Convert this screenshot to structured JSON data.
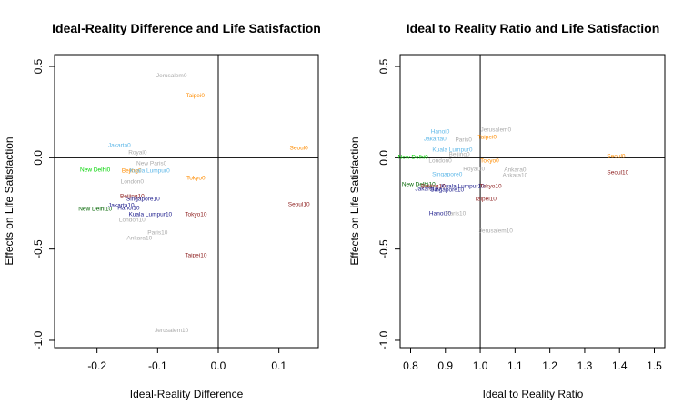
{
  "chart_data": [
    {
      "type": "scatter",
      "title": "Ideal-Reality Difference and Life Satisfaction",
      "xlabel": "Ideal-Reality Difference",
      "ylabel": "Effects on Life Satisfaction",
      "xlim": [
        -0.27,
        0.165
      ],
      "ylim": [
        -1.04,
        0.565
      ],
      "xticks": [
        -0.2,
        -0.1,
        0.0,
        0.1
      ],
      "xtick_labels": [
        "-0.2",
        "-0.1",
        "0.0",
        "0.1"
      ],
      "yticks": [
        0.5,
        0.0,
        -0.5,
        -1.0
      ],
      "ytick_labels": [
        "0.5",
        "0.0",
        "-0.5",
        "-1.0"
      ],
      "reference_lines": {
        "x": 0.0,
        "y": 0.0
      },
      "points": [
        {
          "label": "Jerusalem0",
          "x": -0.077,
          "y": 0.45,
          "color": "#aaaaaa"
        },
        {
          "label": "Taipei0",
          "x": -0.038,
          "y": 0.34,
          "color": "#ff8c00"
        },
        {
          "label": "Jakarta0",
          "x": -0.163,
          "y": 0.07,
          "color": "#5fb8e8"
        },
        {
          "label": "Seoul0",
          "x": 0.133,
          "y": 0.055,
          "color": "#ff8c00"
        },
        {
          "label": "Royal0",
          "x": -0.133,
          "y": 0.03,
          "color": "#aaaaaa"
        },
        {
          "label": "New Paris0",
          "x": -0.11,
          "y": -0.03,
          "color": "#aaaaaa"
        },
        {
          "label": "New Delhi0",
          "x": -0.203,
          "y": -0.065,
          "color": "#00d400"
        },
        {
          "label": "Bejing0",
          "x": -0.143,
          "y": -0.07,
          "color": "#ff8c00"
        },
        {
          "label": "Kuala Lumpur0",
          "x": -0.113,
          "y": -0.07,
          "color": "#5fb8e8"
        },
        {
          "label": "Tokyo0",
          "x": -0.037,
          "y": -0.11,
          "color": "#ff8c00"
        },
        {
          "label": "London0",
          "x": -0.142,
          "y": -0.13,
          "color": "#aaaaaa"
        },
        {
          "label": "Beijing10",
          "x": -0.142,
          "y": -0.21,
          "color": "#8b1a1a"
        },
        {
          "label": "Singapore10",
          "x": -0.124,
          "y": -0.225,
          "color": "#1a1a8b"
        },
        {
          "label": "Seoul10",
          "x": 0.133,
          "y": -0.255,
          "color": "#8b1a1a"
        },
        {
          "label": "Jakarta10",
          "x": -0.16,
          "y": -0.26,
          "color": "#1a1a8b"
        },
        {
          "label": "Hanoi10",
          "x": -0.148,
          "y": -0.275,
          "color": "#1a1a8b"
        },
        {
          "label": "New Delhi10",
          "x": -0.203,
          "y": -0.28,
          "color": "#006400"
        },
        {
          "label": "Kuala Lumpur10",
          "x": -0.112,
          "y": -0.31,
          "color": "#1a1a8b"
        },
        {
          "label": "Tokyo10",
          "x": -0.037,
          "y": -0.31,
          "color": "#8b1a1a"
        },
        {
          "label": "London10",
          "x": -0.142,
          "y": -0.34,
          "color": "#aaaaaa"
        },
        {
          "label": "Paris10",
          "x": -0.1,
          "y": -0.41,
          "color": "#aaaaaa"
        },
        {
          "label": "Ankara10",
          "x": -0.13,
          "y": -0.44,
          "color": "#aaaaaa"
        },
        {
          "label": "Taipei10",
          "x": -0.037,
          "y": -0.535,
          "color": "#8b1a1a"
        },
        {
          "label": "Jerusalem10",
          "x": -0.077,
          "y": -0.945,
          "color": "#aaaaaa"
        }
      ]
    },
    {
      "type": "scatter",
      "title": "Ideal to Reality Ratio and Life Satisfaction",
      "xlabel": "Ideal to Reality Ratio",
      "ylabel": "Effects on Life Satisfaction",
      "xlim": [
        0.77,
        1.53
      ],
      "ylim": [
        -1.04,
        0.565
      ],
      "xticks": [
        0.8,
        0.9,
        1.0,
        1.1,
        1.2,
        1.3,
        1.4,
        1.5
      ],
      "xtick_labels": [
        "0.8",
        "0.9",
        "1.0",
        "1.1",
        "1.2",
        "1.3",
        "1.4",
        "1.5"
      ],
      "yticks": [
        0.5,
        0.0,
        -0.5,
        -1.0
      ],
      "ytick_labels": [
        "0.5",
        "0.0",
        "-0.5",
        "-1.0"
      ],
      "reference_lines": {
        "x": 1.0,
        "y": 0.0
      },
      "points": [
        {
          "label": "Hanoi0",
          "x": 0.885,
          "y": 0.145,
          "color": "#5fb8e8"
        },
        {
          "label": "Jerusalem0",
          "x": 1.045,
          "y": 0.155,
          "color": "#aaaaaa"
        },
        {
          "label": "Jakarta0",
          "x": 0.87,
          "y": 0.105,
          "color": "#5fb8e8"
        },
        {
          "label": "Paris0",
          "x": 0.952,
          "y": 0.1,
          "color": "#aaaaaa"
        },
        {
          "label": "Taipei0",
          "x": 1.02,
          "y": 0.115,
          "color": "#ff8c00"
        },
        {
          "label": "Kuala Lumpur0",
          "x": 0.92,
          "y": 0.045,
          "color": "#5fb8e8"
        },
        {
          "label": "Beijing0",
          "x": 0.94,
          "y": 0.02,
          "color": "#aaaaaa"
        },
        {
          "label": "New Delhi0",
          "x": 0.807,
          "y": 0.005,
          "color": "#00d400"
        },
        {
          "label": "London0",
          "x": 0.885,
          "y": -0.015,
          "color": "#aaaaaa"
        },
        {
          "label": "Tokyo0",
          "x": 1.027,
          "y": -0.015,
          "color": "#ff8c00"
        },
        {
          "label": "Seoul0",
          "x": 1.39,
          "y": 0.01,
          "color": "#ff8c00"
        },
        {
          "label": "Royal10",
          "x": 0.982,
          "y": -0.06,
          "color": "#aaaaaa"
        },
        {
          "label": "Ankara0",
          "x": 1.1,
          "y": -0.065,
          "color": "#aaaaaa"
        },
        {
          "label": "Singapore0",
          "x": 0.905,
          "y": -0.09,
          "color": "#5fb8e8"
        },
        {
          "label": "Ankara10",
          "x": 1.1,
          "y": -0.095,
          "color": "#aaaaaa"
        },
        {
          "label": "Seoul10",
          "x": 1.395,
          "y": -0.08,
          "color": "#8b1a1a"
        },
        {
          "label": "New Delhi10",
          "x": 0.823,
          "y": -0.145,
          "color": "#006400"
        },
        {
          "label": "Beijing10",
          "x": 0.865,
          "y": -0.155,
          "color": "#8b1a1a"
        },
        {
          "label": "Kuala Lumpur10",
          "x": 0.95,
          "y": -0.155,
          "color": "#1a1a8b"
        },
        {
          "label": "Tokyo10",
          "x": 1.03,
          "y": -0.155,
          "color": "#8b1a1a"
        },
        {
          "label": "Jakarta10",
          "x": 0.85,
          "y": -0.17,
          "color": "#1a1a8b"
        },
        {
          "label": "Singapore10",
          "x": 0.905,
          "y": -0.175,
          "color": "#1a1a8b"
        },
        {
          "label": "Taipei10",
          "x": 1.015,
          "y": -0.225,
          "color": "#8b1a1a"
        },
        {
          "label": "Hanoi10",
          "x": 0.885,
          "y": -0.305,
          "color": "#1a1a8b"
        },
        {
          "label": "Paris10",
          "x": 0.93,
          "y": -0.305,
          "color": "#aaaaaa"
        },
        {
          "label": "Jerusalem10",
          "x": 1.045,
          "y": -0.4,
          "color": "#aaaaaa"
        }
      ]
    }
  ]
}
